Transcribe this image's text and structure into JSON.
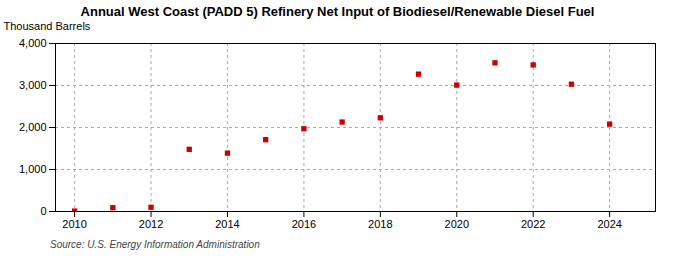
{
  "chart_data": {
    "type": "scatter",
    "title": "Annual West Coast (PADD 5) Refinery Net Input of Biodiesel/Renewable Diesel Fuel",
    "ylabel": "Thousand Barrels",
    "annotations": [
      "Source: U.S. Energy Information Administration"
    ],
    "x": [
      2010,
      2011,
      2012,
      2013,
      2014,
      2015,
      2016,
      2017,
      2018,
      2019,
      2020,
      2021,
      2022,
      2023,
      2024
    ],
    "values": [
      10,
      90,
      100,
      1480,
      1390,
      1710,
      1970,
      2130,
      2230,
      3270,
      3010,
      3540,
      3490,
      3030,
      2080
    ],
    "color": "#cc0000",
    "marker": "square",
    "xlim": [
      2009.5,
      2025.2
    ],
    "xticks": [
      2010,
      2012,
      2014,
      2016,
      2018,
      2020,
      2022,
      2024
    ],
    "ylim": [
      0,
      4000
    ],
    "yticks": [
      0,
      {
        "value": 1000,
        "label": "1,000"
      },
      {
        "value": 2000,
        "label": "2,000"
      },
      {
        "value": 3000,
        "label": "3,000"
      },
      {
        "value": 4000,
        "label": "4,000"
      }
    ],
    "grid": true
  }
}
